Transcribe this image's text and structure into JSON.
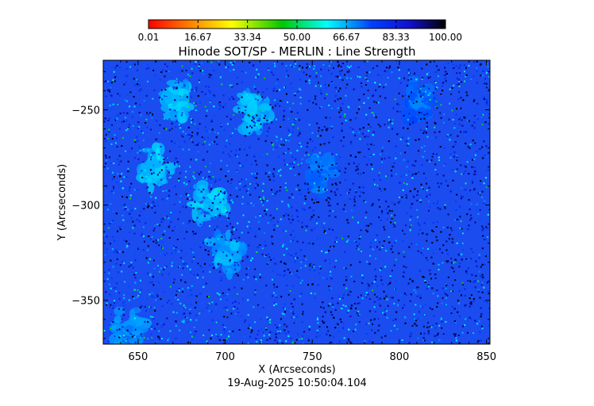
{
  "chart_data": {
    "type": "heatmap",
    "title": "Hinode SOT/SP - MERLIN : Line Strength",
    "xlabel": "X (Arcseconds)",
    "ylabel": "Y (Arcseconds)",
    "xlim": [
      630,
      852
    ],
    "ylim": [
      -373,
      -224
    ],
    "x_ticks": [
      650,
      700,
      750,
      800,
      850
    ],
    "x_tick_labels": [
      "650",
      "700",
      "750",
      "800",
      "850"
    ],
    "y_ticks": [
      -250,
      -300,
      -350
    ],
    "y_tick_labels": [
      "−250",
      "−300",
      "−350"
    ],
    "colorbar": {
      "range": [
        0.01,
        100.0
      ],
      "tick_values": [
        0.01,
        16.67,
        33.34,
        50.0,
        66.67,
        83.33,
        100.0
      ],
      "tick_labels": [
        "0.01",
        "16.67",
        "33.34",
        "50.00",
        "66.67",
        "83.33",
        "100.00"
      ],
      "colormap": "rainbow (red → yellow → green → cyan → blue → black)",
      "placement": "top"
    },
    "field_description": "dense speckled map, mostly blue (values ~70-85) with lighter cyan patches (~60-68) in the upper-left and scattered dark/black pixels",
    "bright_patches": [
      {
        "x": 675,
        "y": -245,
        "value": 62
      },
      {
        "x": 715,
        "y": -250,
        "value": 63
      },
      {
        "x": 660,
        "y": -280,
        "value": 61
      },
      {
        "x": 690,
        "y": -300,
        "value": 62
      },
      {
        "x": 700,
        "y": -325,
        "value": 64
      },
      {
        "x": 645,
        "y": -365,
        "value": 66
      },
      {
        "x": 755,
        "y": -285,
        "value": 68
      },
      {
        "x": 810,
        "y": -245,
        "value": 69
      }
    ],
    "grid": false,
    "legend": "none"
  },
  "footer": {
    "timestamp": "19-Aug-2025 10:50:04.104"
  },
  "colors": {
    "colormap_stops": [
      "#ff0000",
      "#ff8000",
      "#ffff00",
      "#00c800",
      "#00ffff",
      "#0040ff",
      "#1010d0",
      "#000000"
    ],
    "field_base": "#1a4cf0",
    "axis": "#000000"
  }
}
